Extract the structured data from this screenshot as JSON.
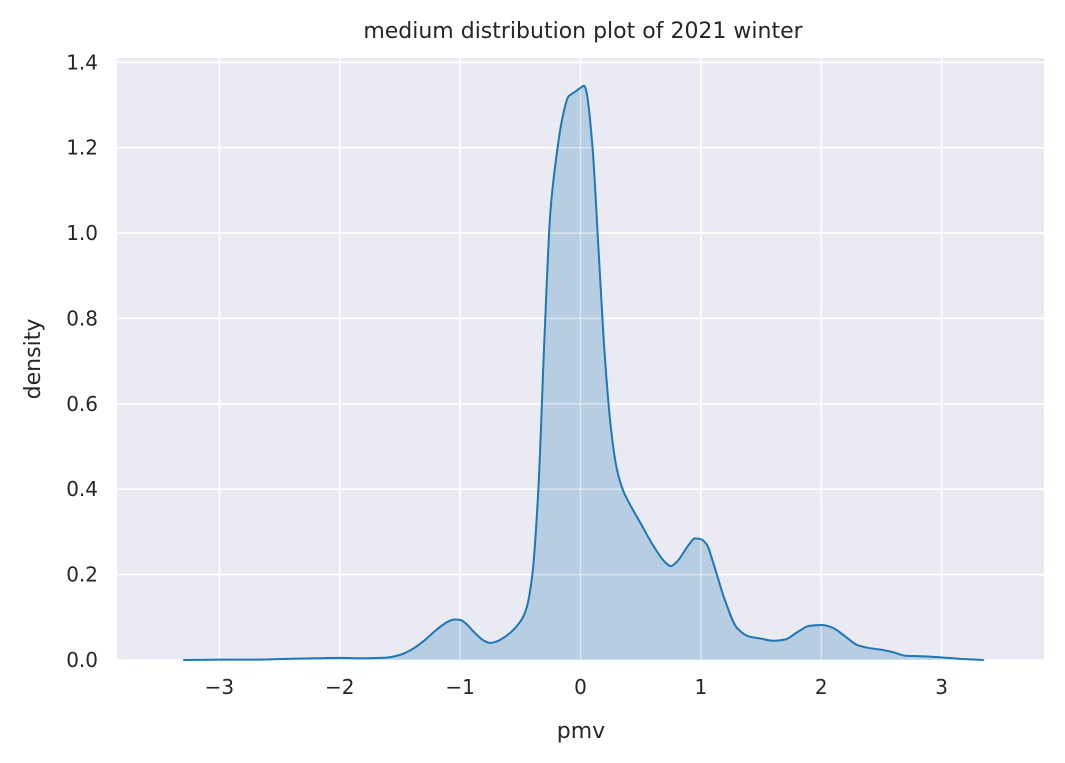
{
  "chart_data": {
    "type": "area",
    "title": "medium distribution plot of 2021 winter",
    "xlabel": "pmv",
    "ylabel": "density",
    "xlim": [
      -3.85,
      3.85
    ],
    "ylim": [
      0,
      1.41
    ],
    "xticks": [
      -3,
      -2,
      -1,
      0,
      1,
      2,
      3
    ],
    "xtick_labels": [
      "−3",
      "−2",
      "−1",
      "0",
      "1",
      "2",
      "3"
    ],
    "yticks": [
      0.0,
      0.2,
      0.4,
      0.6,
      0.8,
      1.0,
      1.2,
      1.4
    ],
    "ytick_labels": [
      "0.0",
      "0.2",
      "0.4",
      "0.6",
      "0.8",
      "1.0",
      "1.2",
      "1.4"
    ],
    "grid": true,
    "background_color": "#eaeaf2",
    "line_color": "#1f77b4",
    "fill_color": "#b7cde2",
    "series": [
      {
        "x": [
          -3.3,
          -3.0,
          -2.7,
          -2.4,
          -2.2,
          -2.0,
          -1.8,
          -1.6,
          -1.5,
          -1.4,
          -1.3,
          -1.2,
          -1.1,
          -1.05,
          -1.0,
          -0.95,
          -0.9,
          -0.8,
          -0.75,
          -0.7,
          -0.6,
          -0.5,
          -0.45,
          -0.4,
          -0.35,
          -0.3,
          -0.25,
          -0.2,
          -0.15,
          -0.1,
          -0.05,
          0.0,
          0.03,
          0.05,
          0.1,
          0.15,
          0.2,
          0.25,
          0.3,
          0.35,
          0.4,
          0.5,
          0.6,
          0.7,
          0.75,
          0.8,
          0.9,
          0.95,
          1.0,
          1.05,
          1.1,
          1.2,
          1.3,
          1.4,
          1.5,
          1.6,
          1.7,
          1.8,
          1.9,
          2.0,
          2.05,
          2.1,
          2.2,
          2.3,
          2.4,
          2.5,
          2.6,
          2.7,
          2.8,
          2.9,
          3.0,
          3.1,
          3.2,
          3.35
        ],
        "y": [
          0.0,
          0.001,
          0.001,
          0.003,
          0.004,
          0.005,
          0.004,
          0.006,
          0.012,
          0.025,
          0.045,
          0.07,
          0.09,
          0.095,
          0.094,
          0.085,
          0.07,
          0.045,
          0.04,
          0.043,
          0.06,
          0.09,
          0.12,
          0.2,
          0.4,
          0.75,
          1.05,
          1.18,
          1.27,
          1.32,
          1.33,
          1.34,
          1.345,
          1.33,
          1.2,
          0.96,
          0.72,
          0.55,
          0.45,
          0.4,
          0.37,
          0.32,
          0.27,
          0.23,
          0.22,
          0.23,
          0.27,
          0.285,
          0.283,
          0.27,
          0.23,
          0.14,
          0.075,
          0.055,
          0.05,
          0.045,
          0.048,
          0.065,
          0.08,
          0.082,
          0.08,
          0.075,
          0.055,
          0.035,
          0.028,
          0.024,
          0.018,
          0.01,
          0.009,
          0.008,
          0.006,
          0.004,
          0.002,
          0.0
        ]
      }
    ]
  }
}
